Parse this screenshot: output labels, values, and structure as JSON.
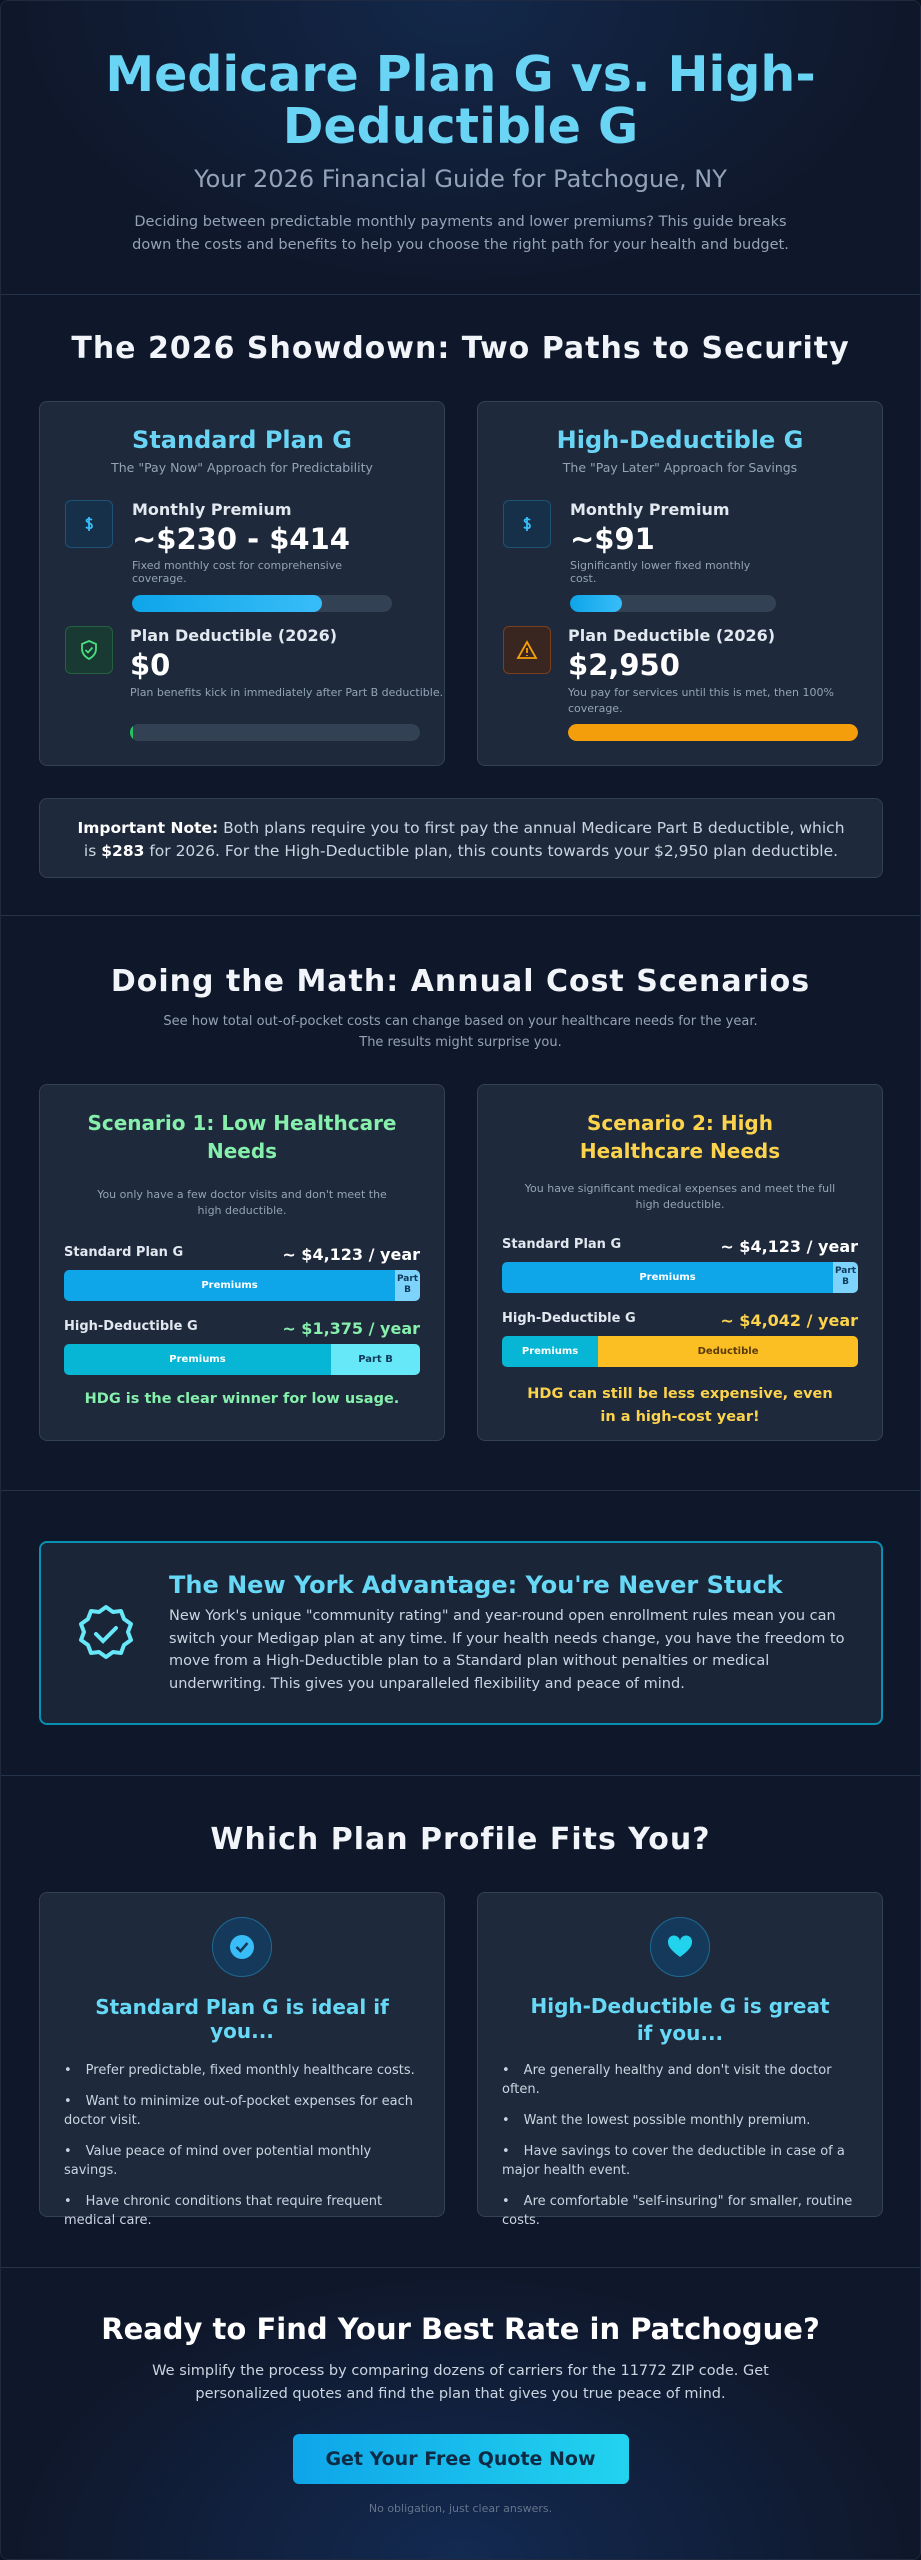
{
  "header": {
    "title": "Medicare Plan G vs. High-Deductible G",
    "subtitle": "Your 2026 Financial Guide for Patchogue, NY",
    "description": "Deciding between predictable monthly payments and lower premiums? This guide breaks down the costs and benefits to help you choose the right path for your health and budget."
  },
  "showdown": {
    "title": "The 2026 Showdown: Two Paths to Security",
    "plans": [
      {
        "name": "Standard Plan G",
        "tagline": "The \"Pay Now\" Approach for Predictability",
        "premium_label": "Monthly Premium",
        "premium": "~$230 - $414",
        "premium_note": "Fixed monthly cost for comprehensive coverage.",
        "deductible_label": "Plan Deductible (2026)",
        "deductible": "$0",
        "deductible_note": "Plan benefits kick in immediately after Part B deductible."
      },
      {
        "name": "High-Deductible G",
        "tagline": "The \"Pay Later\" Approach for Savings",
        "premium_label": "Monthly Premium",
        "premium": "~$91",
        "premium_note": "Significantly lower fixed monthly cost.",
        "deductible_label": "Plan Deductible (2026)",
        "deductible": "$2,950",
        "deductible_note": "You pay for services until this is met, then 100% coverage."
      }
    ],
    "note": {
      "label": "Important Note:",
      "text_1": "Both plans require you to first pay the annual Medicare Part B deductible, which is",
      "amount": "$283",
      "text_2": "for 2026. For the High-Deductible plan, this counts towards your $2,950 plan deductible."
    }
  },
  "scenarios": {
    "title": "Doing the Math: Annual Cost Scenarios",
    "subtitle": "See how total out-of-pocket costs can change based on your healthcare needs for the year. The results might surprise you.",
    "items": [
      {
        "title": "Scenario 1: Low Healthcare Needs",
        "description": "You only have a few doctor visits and don't meet the high deductible.",
        "rows": [
          {
            "plan": "Standard Plan G",
            "total": "~ $4,123 / year",
            "segments": [
              "Premiums",
              "Part B"
            ]
          },
          {
            "plan": "High-Deductible G",
            "total": "~ $1,375 / year",
            "segments": [
              "Premiums",
              "Part B"
            ]
          }
        ],
        "verdict": "HDG is the clear winner for low usage."
      },
      {
        "title": "Scenario 2: High Healthcare Needs",
        "description": "You have significant medical expenses and meet the full high deductible.",
        "rows": [
          {
            "plan": "Standard Plan G",
            "total": "~ $4,123 / year",
            "segments": [
              "Premiums",
              "Part B"
            ]
          },
          {
            "plan": "High-Deductible G",
            "total": "~ $4,042 / year",
            "segments": [
              "Premiums",
              "Deductible"
            ]
          }
        ],
        "verdict": "HDG can still be less expensive, even in a high-cost year!"
      }
    ]
  },
  "ny": {
    "title": "The New York Advantage: You're Never Stuck",
    "text": "New York's unique \"community rating\" and year-round open enrollment rules mean you can switch your Medigap plan at any time. If your health needs change, you have the freedom to move from a High-Deductible plan to a Standard plan without penalties or medical underwriting. This gives you unparalleled flexibility and peace of mind."
  },
  "profiles": {
    "title": "Which Plan Profile Fits You?",
    "items": [
      {
        "title": "Standard Plan G is ideal if you...",
        "bullets": [
          "Prefer predictable, fixed monthly healthcare costs.",
          "Want to minimize out-of-pocket expenses for each doctor visit.",
          "Value peace of mind over potential monthly savings.",
          "Have chronic conditions that require frequent medical care."
        ]
      },
      {
        "title": "High-Deductible G is great if you...",
        "bullets": [
          "Are generally healthy and don't visit the doctor often.",
          "Want the lowest possible monthly premium.",
          "Have savings to cover the deductible in case of a major health event.",
          "Are comfortable \"self-insuring\" for smaller, routine costs."
        ]
      }
    ]
  },
  "cta": {
    "title": "Ready to Find Your Best Rate in Patchogue?",
    "text": "We simplify the process by comparing dozens of carriers for the 11772 ZIP code. Get personalized quotes and find the plan that gives you true peace of mind.",
    "button": "Get Your Free Quote Now",
    "footnote": "No obligation, just clear answers."
  }
}
